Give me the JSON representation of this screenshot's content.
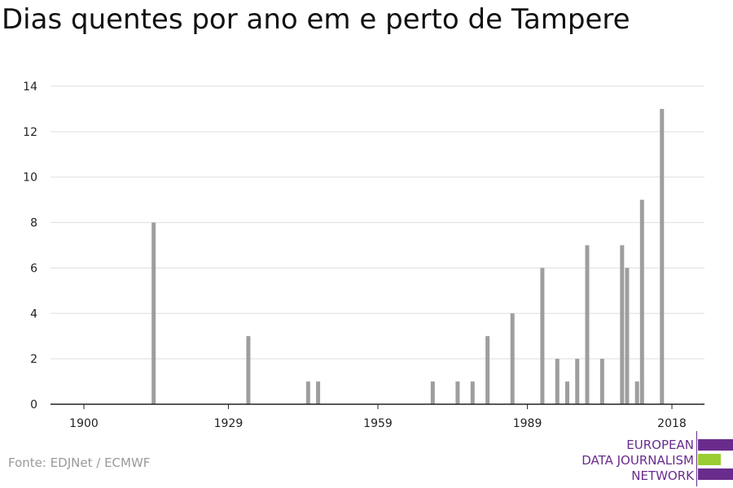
{
  "title": "Dias quentes por ano em e perto de Tampere",
  "source": "Fonte: EDJNet / ECMWF",
  "logo": {
    "line1": "EUROPEAN",
    "line2": "DATA JOURNALISM",
    "line3": "NETWORK",
    "purple": "#6a2c8c",
    "green": "#9acd32"
  },
  "colors": {
    "bar": "#9e9e9e",
    "grid": "#dddddd",
    "axis": "#222222"
  },
  "chart_data": {
    "type": "bar",
    "xlabel": "",
    "ylabel": "",
    "xlim": [
      1900,
      2018
    ],
    "ylim": [
      0,
      14
    ],
    "xticks": [
      1900,
      1929,
      1959,
      1989,
      2018
    ],
    "yticks": [
      0,
      2,
      4,
      6,
      8,
      10,
      12,
      14
    ],
    "grid": true,
    "points": [
      {
        "year": 1914,
        "value": 8
      },
      {
        "year": 1933,
        "value": 3
      },
      {
        "year": 1945,
        "value": 1
      },
      {
        "year": 1947,
        "value": 1
      },
      {
        "year": 1970,
        "value": 1
      },
      {
        "year": 1975,
        "value": 1
      },
      {
        "year": 1978,
        "value": 1
      },
      {
        "year": 1981,
        "value": 3
      },
      {
        "year": 1986,
        "value": 4
      },
      {
        "year": 1992,
        "value": 6
      },
      {
        "year": 1995,
        "value": 2
      },
      {
        "year": 1997,
        "value": 1
      },
      {
        "year": 1999,
        "value": 2
      },
      {
        "year": 2001,
        "value": 7
      },
      {
        "year": 2004,
        "value": 2
      },
      {
        "year": 2008,
        "value": 7
      },
      {
        "year": 2009,
        "value": 6
      },
      {
        "year": 2011,
        "value": 1
      },
      {
        "year": 2012,
        "value": 9
      },
      {
        "year": 2016,
        "value": 13
      }
    ]
  }
}
